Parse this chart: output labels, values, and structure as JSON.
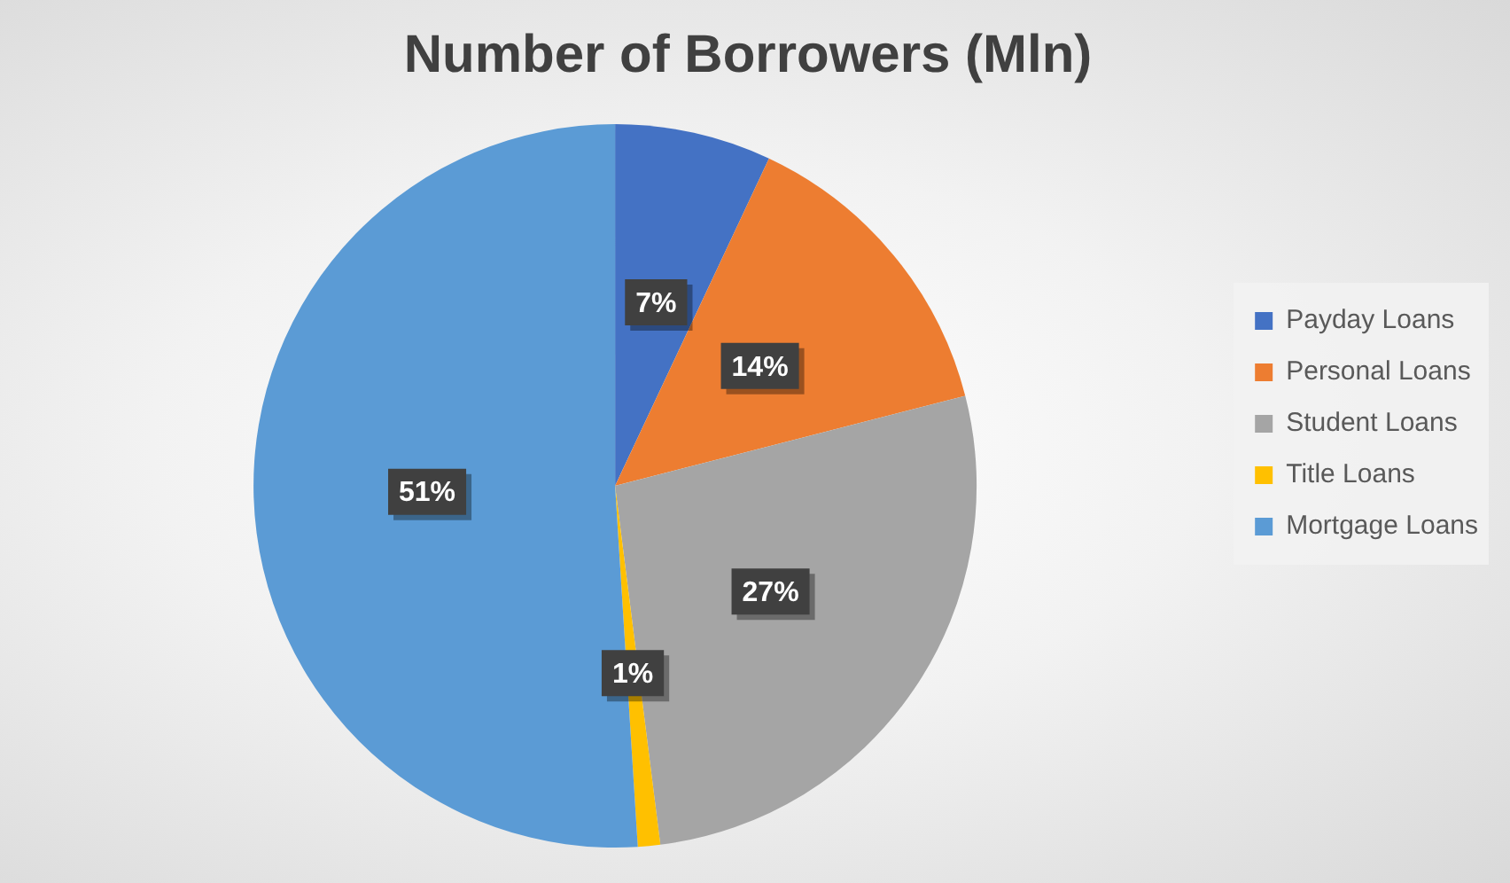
{
  "chart_data": {
    "type": "pie",
    "title": "Number of Borrowers (Mln)",
    "categories": [
      "Payday Loans",
      "Personal Loans",
      "Student Loans",
      "Title Loans",
      "Mortgage Loans"
    ],
    "values": [
      7,
      14,
      27,
      1,
      51
    ],
    "colors": [
      "#4472c4",
      "#ed7d31",
      "#a5a5a5",
      "#ffc000",
      "#5b9bd5"
    ],
    "value_labels": [
      "7%",
      "14%",
      "27%",
      "1%",
      "51%"
    ],
    "legend": "right"
  }
}
